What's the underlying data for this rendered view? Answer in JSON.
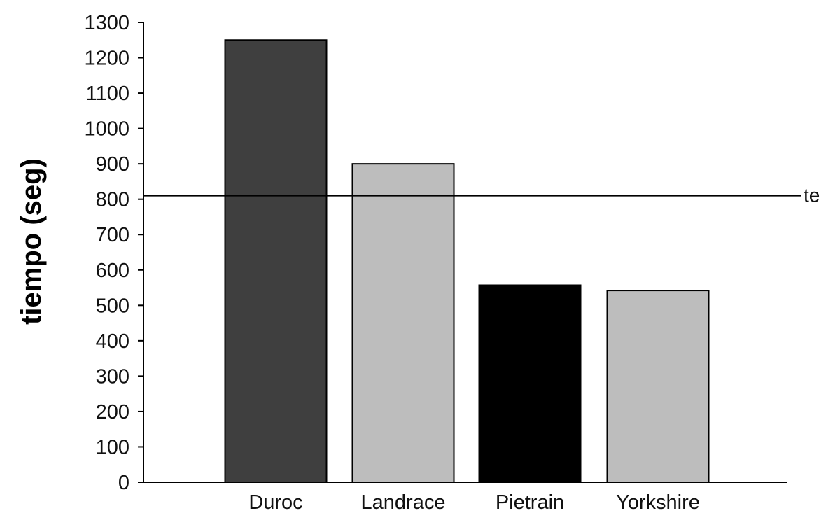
{
  "chart_data": {
    "type": "bar",
    "title": "",
    "xlabel": "",
    "ylabel": "tiempo (seg)",
    "ylim": [
      0,
      1300
    ],
    "yticks": [
      0,
      100,
      200,
      300,
      400,
      500,
      600,
      700,
      800,
      900,
      1000,
      1100,
      1200,
      1300
    ],
    "categories": [
      "Duroc",
      "Landrace",
      "Pietrain",
      "Yorkshire"
    ],
    "values": [
      1250,
      900,
      557,
      542
    ],
    "bar_colors": [
      "#3f3f3f",
      "#bdbdbd",
      "#000000",
      "#bdbdbd"
    ],
    "reference_line": {
      "label": "te",
      "value": 810
    },
    "grid": false,
    "legend": "none"
  }
}
